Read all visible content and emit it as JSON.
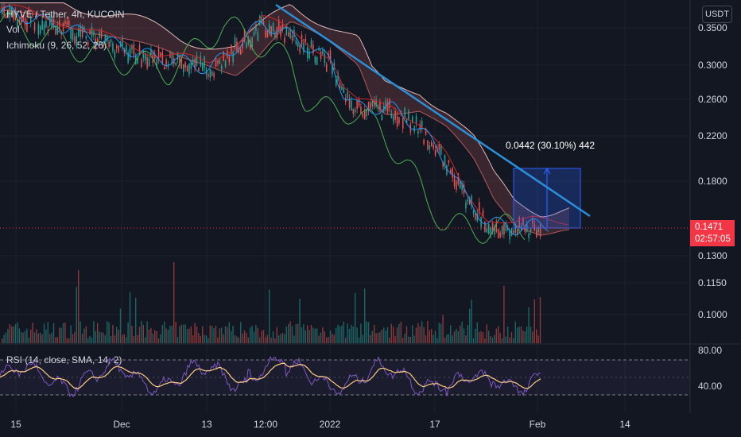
{
  "legend": {
    "symbol_line": "HYVE / Tether, 4h, KUCOIN",
    "volume": "Vol",
    "ichimoku": "Ichimoku (9, 26, 52, 26)",
    "rsi": "RSI (14, close, SMA, 14, 2)"
  },
  "currency_button": "USDT",
  "price_tag": {
    "price": "0.1471",
    "countdown": "02:57:05"
  },
  "measure_label": "0.0442 (30.10%) 442",
  "colors": {
    "background": "#131722",
    "trendline": "#2a8fd9",
    "candle_up": "#26a69a",
    "candle_down": "#ef5350",
    "rsi_line": "#7e57c2",
    "rsi_ma": "#ffcc80",
    "ichimoku_lagging": "#4caf50",
    "ichimoku_base": "#c62828",
    "ichimoku_conversion": "#2196f3",
    "ichimoku_cloud": "#a05050",
    "measure_box": "#2962ff",
    "last_price": "#f23645"
  },
  "chart_data": {
    "type": "candlestick",
    "symbol": "HYVE / Tether",
    "interval": "4h",
    "exchange": "KUCOIN",
    "x_ticks": [
      "15",
      "Dec",
      "13",
      "12:00",
      "2022",
      "17",
      "Feb",
      "14"
    ],
    "y_ticks_price": [
      "0.3500",
      "0.3000",
      "0.2600",
      "0.2200",
      "0.1800",
      "0.1300",
      "0.1150",
      "0.1000"
    ],
    "y_ticks_rsi": [
      "80.00",
      "40.00"
    ],
    "price_scale": "log",
    "close_path": [
      {
        "x": "Nov 15",
        "y": 0.37
      },
      {
        "x": "Nov 22",
        "y": 0.35
      },
      {
        "x": "Nov 28",
        "y": 0.33
      },
      {
        "x": "Dec 1",
        "y": 0.32
      },
      {
        "x": "Dec 6",
        "y": 0.305
      },
      {
        "x": "Dec 10",
        "y": 0.3
      },
      {
        "x": "Dec 14",
        "y": 0.29
      },
      {
        "x": "Dec 17",
        "y": 0.31
      },
      {
        "x": "Dec 22",
        "y": 0.355
      },
      {
        "x": "Dec 27",
        "y": 0.33
      },
      {
        "x": "Jan 1",
        "y": 0.3
      },
      {
        "x": "Jan 3",
        "y": 0.26
      },
      {
        "x": "Jan 5",
        "y": 0.245
      },
      {
        "x": "Jan 10",
        "y": 0.245
      },
      {
        "x": "Jan 14",
        "y": 0.225
      },
      {
        "x": "Jan 18",
        "y": 0.195
      },
      {
        "x": "Jan 21",
        "y": 0.165
      },
      {
        "x": "Jan 24",
        "y": 0.15
      },
      {
        "x": "Jan 28",
        "y": 0.145
      },
      {
        "x": "Jan 31",
        "y": 0.1471
      }
    ],
    "last_price": 0.1471,
    "rsi_levels": [
      70,
      30
    ],
    "measure": {
      "change": 0.0442,
      "percent": 30.1,
      "bars": 442
    }
  }
}
